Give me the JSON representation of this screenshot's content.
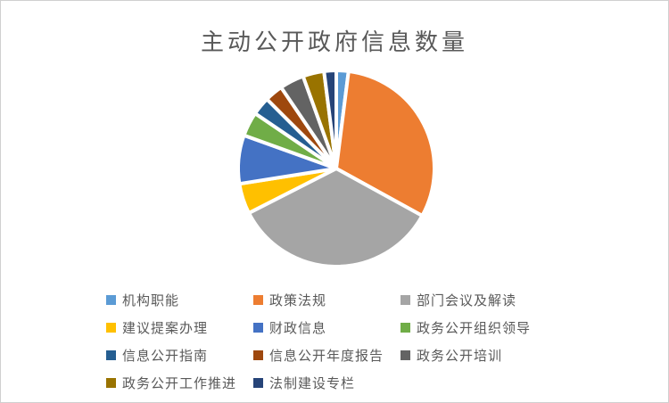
{
  "page": {
    "background": "#FFFFFF",
    "border_color": "#D0D0D0"
  },
  "chart_data": {
    "type": "pie",
    "title": "主动公开政府信息数量",
    "title_color": "#595959",
    "legend_position": "bottom",
    "legend_text_color": "#595959",
    "start_angle_deg": 0,
    "direction": "clockwise",
    "slice_border_color": "#FFFFFF",
    "categories": [
      "机构职能",
      "政策法规",
      "部门会议及解读",
      "建议提案办理",
      "财政信息",
      "政务公开组织领导",
      "信息公开指南",
      "信息公开年度报告",
      "政务公开培训",
      "政务公开工作推进",
      "法制建设专栏"
    ],
    "values": [
      2,
      31,
      34.5,
      5,
      8,
      4,
      3,
      3,
      4,
      3.5,
      2
    ],
    "colors": [
      "#5B9BD5",
      "#ED7D31",
      "#A5A5A5",
      "#FFC000",
      "#4472C4",
      "#70AD47",
      "#255E91",
      "#9E480E",
      "#636363",
      "#997300",
      "#264478"
    ]
  }
}
